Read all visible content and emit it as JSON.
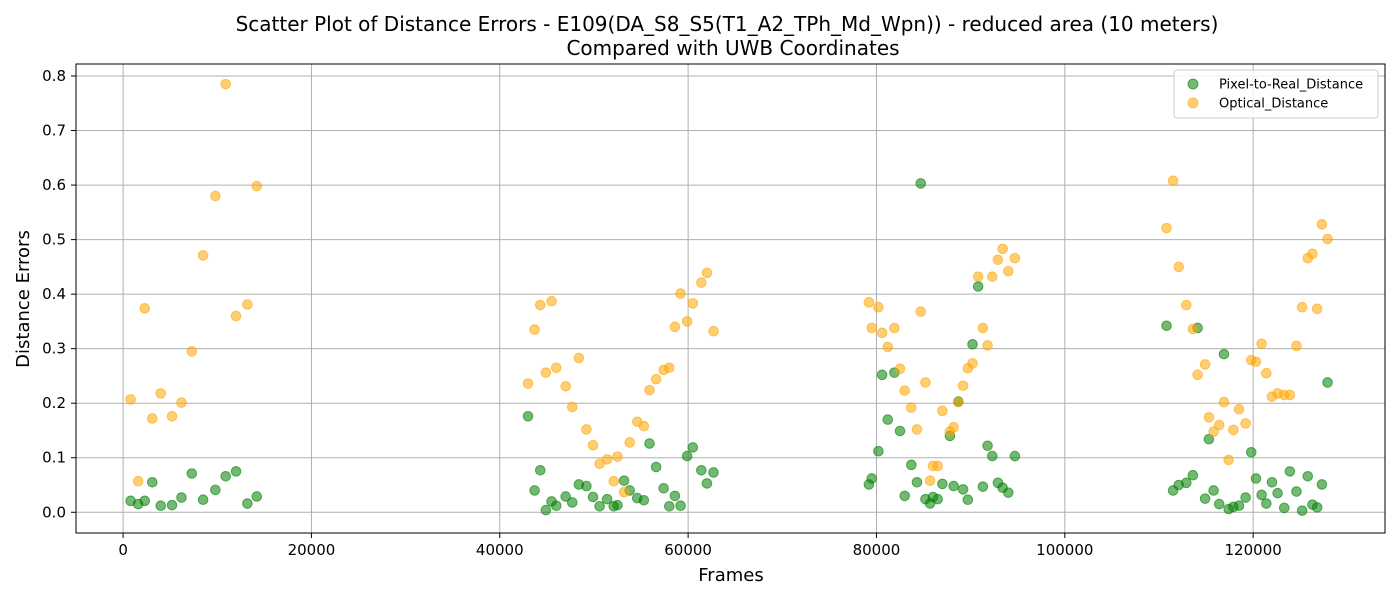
{
  "chart_data": {
    "type": "scatter",
    "title": [
      "Scatter Plot of Distance Errors - E109(DA_S8_S5(T1_A2_TPh_Md_Wpn)) - reduced area (10 meters)",
      "Compared with UWB Coordinates"
    ],
    "xlabel": "Frames",
    "ylabel": "Distance Errors",
    "xlim": [
      -5000,
      134000
    ],
    "ylim": [
      -0.038,
      0.822
    ],
    "xticks": [
      0,
      20000,
      40000,
      60000,
      80000,
      100000,
      120000
    ],
    "yticks": [
      0.0,
      0.1,
      0.2,
      0.3,
      0.4,
      0.5,
      0.6,
      0.7,
      0.8
    ],
    "grid": true,
    "legend_position": "top-right",
    "series": [
      {
        "name": "Pixel-to-Real_Distance",
        "color": "#008000",
        "points": [
          [
            800,
            0.021
          ],
          [
            1600,
            0.015
          ],
          [
            2300,
            0.021
          ],
          [
            3100,
            0.055
          ],
          [
            4000,
            0.012
          ],
          [
            5200,
            0.013
          ],
          [
            6200,
            0.027
          ],
          [
            7300,
            0.071
          ],
          [
            8500,
            0.023
          ],
          [
            9800,
            0.041
          ],
          [
            10900,
            0.066
          ],
          [
            12000,
            0.075
          ],
          [
            13200,
            0.016
          ],
          [
            14200,
            0.029
          ],
          [
            43000,
            0.176
          ],
          [
            43700,
            0.04
          ],
          [
            44300,
            0.077
          ],
          [
            44900,
            0.004
          ],
          [
            45500,
            0.02
          ],
          [
            46000,
            0.012
          ],
          [
            47000,
            0.029
          ],
          [
            47700,
            0.018
          ],
          [
            48400,
            0.051
          ],
          [
            49200,
            0.048
          ],
          [
            49900,
            0.028
          ],
          [
            50600,
            0.011
          ],
          [
            51400,
            0.024
          ],
          [
            52100,
            0.011
          ],
          [
            52500,
            0.013
          ],
          [
            53200,
            0.058
          ],
          [
            53800,
            0.04
          ],
          [
            54600,
            0.026
          ],
          [
            55300,
            0.022
          ],
          [
            55900,
            0.126
          ],
          [
            56600,
            0.083
          ],
          [
            57400,
            0.044
          ],
          [
            58000,
            0.011
          ],
          [
            58600,
            0.03
          ],
          [
            59200,
            0.012
          ],
          [
            59900,
            0.103
          ],
          [
            60500,
            0.119
          ],
          [
            61400,
            0.077
          ],
          [
            62000,
            0.053
          ],
          [
            62700,
            0.073
          ],
          [
            79200,
            0.051
          ],
          [
            79500,
            0.062
          ],
          [
            80200,
            0.112
          ],
          [
            80600,
            0.252
          ],
          [
            81200,
            0.17
          ],
          [
            81900,
            0.256
          ],
          [
            82500,
            0.149
          ],
          [
            83000,
            0.03
          ],
          [
            83700,
            0.087
          ],
          [
            84300,
            0.055
          ],
          [
            84700,
            0.603
          ],
          [
            85200,
            0.024
          ],
          [
            85700,
            0.016
          ],
          [
            86000,
            0.028
          ],
          [
            86500,
            0.024
          ],
          [
            87000,
            0.052
          ],
          [
            87800,
            0.14
          ],
          [
            88200,
            0.048
          ],
          [
            88700,
            0.203
          ],
          [
            89200,
            0.042
          ],
          [
            89700,
            0.023
          ],
          [
            90200,
            0.308
          ],
          [
            90800,
            0.414
          ],
          [
            91300,
            0.047
          ],
          [
            91800,
            0.122
          ],
          [
            92300,
            0.103
          ],
          [
            92900,
            0.054
          ],
          [
            93400,
            0.045
          ],
          [
            94000,
            0.036
          ],
          [
            94700,
            0.103
          ],
          [
            110800,
            0.342
          ],
          [
            111500,
            0.04
          ],
          [
            112100,
            0.05
          ],
          [
            112900,
            0.054
          ],
          [
            113600,
            0.068
          ],
          [
            114100,
            0.338
          ],
          [
            114900,
            0.025
          ],
          [
            115300,
            0.134
          ],
          [
            115800,
            0.04
          ],
          [
            116400,
            0.015
          ],
          [
            116900,
            0.29
          ],
          [
            117400,
            0.006
          ],
          [
            117900,
            0.01
          ],
          [
            118500,
            0.012
          ],
          [
            119200,
            0.027
          ],
          [
            119800,
            0.11
          ],
          [
            120300,
            0.062
          ],
          [
            120900,
            0.032
          ],
          [
            121400,
            0.016
          ],
          [
            122000,
            0.055
          ],
          [
            122600,
            0.035
          ],
          [
            123300,
            0.008
          ],
          [
            123900,
            0.075
          ],
          [
            124600,
            0.038
          ],
          [
            125200,
            0.003
          ],
          [
            125800,
            0.066
          ],
          [
            126300,
            0.014
          ],
          [
            126800,
            0.009
          ],
          [
            127300,
            0.051
          ],
          [
            127900,
            0.238
          ]
        ]
      },
      {
        "name": "Optical_Distance",
        "color": "#FFA500",
        "points": [
          [
            800,
            0.207
          ],
          [
            1600,
            0.057
          ],
          [
            2300,
            0.374
          ],
          [
            3100,
            0.172
          ],
          [
            4000,
            0.218
          ],
          [
            5200,
            0.176
          ],
          [
            6200,
            0.201
          ],
          [
            7300,
            0.295
          ],
          [
            8500,
            0.471
          ],
          [
            9800,
            0.58
          ],
          [
            10900,
            0.785
          ],
          [
            12000,
            0.36
          ],
          [
            13200,
            0.381
          ],
          [
            14200,
            0.598
          ],
          [
            43000,
            0.236
          ],
          [
            43700,
            0.335
          ],
          [
            44300,
            0.38
          ],
          [
            44900,
            0.256
          ],
          [
            45500,
            0.387
          ],
          [
            46000,
            0.265
          ],
          [
            47000,
            0.231
          ],
          [
            47700,
            0.193
          ],
          [
            48400,
            0.283
          ],
          [
            49200,
            0.152
          ],
          [
            49900,
            0.123
          ],
          [
            50600,
            0.089
          ],
          [
            51400,
            0.097
          ],
          [
            52100,
            0.057
          ],
          [
            52500,
            0.102
          ],
          [
            53200,
            0.037
          ],
          [
            53800,
            0.128
          ],
          [
            54600,
            0.166
          ],
          [
            55300,
            0.158
          ],
          [
            55900,
            0.224
          ],
          [
            56600,
            0.244
          ],
          [
            57400,
            0.261
          ],
          [
            58000,
            0.265
          ],
          [
            58600,
            0.34
          ],
          [
            59200,
            0.401
          ],
          [
            59900,
            0.35
          ],
          [
            60500,
            0.383
          ],
          [
            61400,
            0.421
          ],
          [
            62000,
            0.439
          ],
          [
            62700,
            0.332
          ],
          [
            79200,
            0.385
          ],
          [
            79500,
            0.338
          ],
          [
            80200,
            0.376
          ],
          [
            80600,
            0.329
          ],
          [
            81200,
            0.303
          ],
          [
            81900,
            0.338
          ],
          [
            82500,
            0.263
          ],
          [
            83000,
            0.223
          ],
          [
            83700,
            0.192
          ],
          [
            84300,
            0.152
          ],
          [
            84700,
            0.368
          ],
          [
            85200,
            0.238
          ],
          [
            85700,
            0.058
          ],
          [
            86000,
            0.085
          ],
          [
            86500,
            0.085
          ],
          [
            87000,
            0.186
          ],
          [
            87800,
            0.148
          ],
          [
            88200,
            0.156
          ],
          [
            88700,
            0.202
          ],
          [
            89200,
            0.232
          ],
          [
            89700,
            0.264
          ],
          [
            90200,
            0.273
          ],
          [
            90800,
            0.432
          ],
          [
            91300,
            0.338
          ],
          [
            91800,
            0.306
          ],
          [
            92300,
            0.432
          ],
          [
            92900,
            0.463
          ],
          [
            93400,
            0.483
          ],
          [
            94000,
            0.442
          ],
          [
            94700,
            0.466
          ],
          [
            110800,
            0.521
          ],
          [
            111500,
            0.608
          ],
          [
            112100,
            0.45
          ],
          [
            112900,
            0.38
          ],
          [
            113600,
            0.336
          ],
          [
            114100,
            0.252
          ],
          [
            114900,
            0.271
          ],
          [
            115300,
            0.174
          ],
          [
            115800,
            0.148
          ],
          [
            116400,
            0.16
          ],
          [
            116900,
            0.202
          ],
          [
            117400,
            0.096
          ],
          [
            117900,
            0.151
          ],
          [
            118500,
            0.189
          ],
          [
            119200,
            0.163
          ],
          [
            119800,
            0.279
          ],
          [
            120300,
            0.276
          ],
          [
            120900,
            0.309
          ],
          [
            121400,
            0.255
          ],
          [
            122000,
            0.212
          ],
          [
            122600,
            0.218
          ],
          [
            123300,
            0.215
          ],
          [
            123900,
            0.215
          ],
          [
            124600,
            0.305
          ],
          [
            125200,
            0.376
          ],
          [
            125800,
            0.466
          ],
          [
            126300,
            0.474
          ],
          [
            126800,
            0.373
          ],
          [
            127300,
            0.528
          ],
          [
            127900,
            0.501
          ]
        ]
      }
    ]
  }
}
